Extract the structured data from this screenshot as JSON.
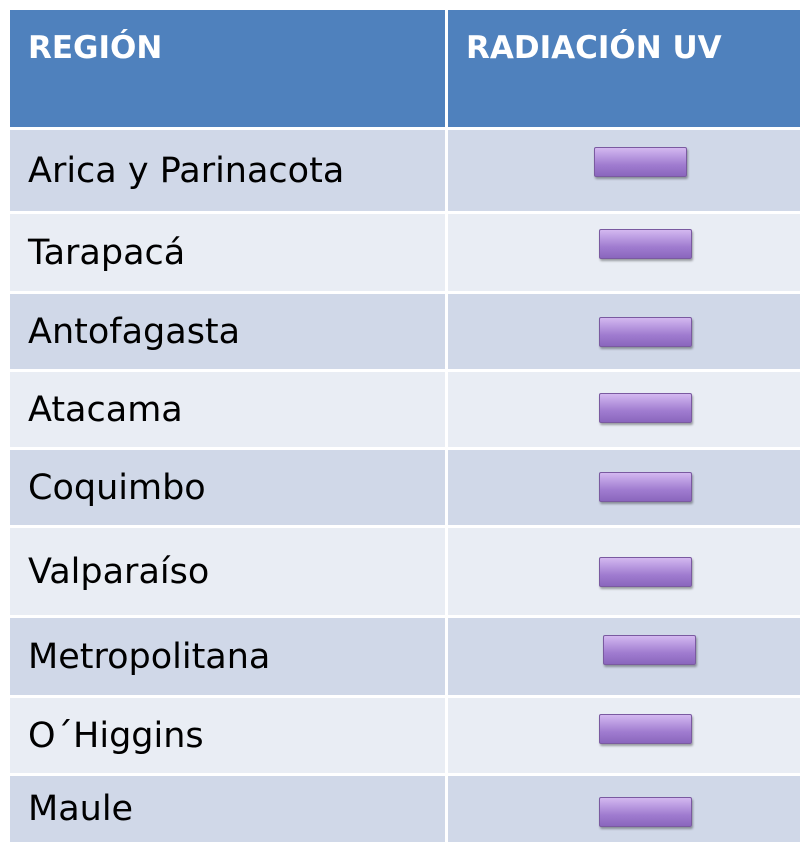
{
  "table": {
    "header": [
      "REGIÓN",
      "RADIACIÓN UV"
    ],
    "rows": [
      [
        "Arica y Parinacota"
      ],
      [
        "Tarapacá"
      ],
      [
        "Antofagasta"
      ],
      [
        "Atacama"
      ],
      [
        "Coquimbo"
      ],
      [
        "Valparaíso"
      ],
      [
        "Metropolitana"
      ],
      [
        "O´Higgins"
      ],
      [
        "Maule"
      ]
    ]
  }
}
